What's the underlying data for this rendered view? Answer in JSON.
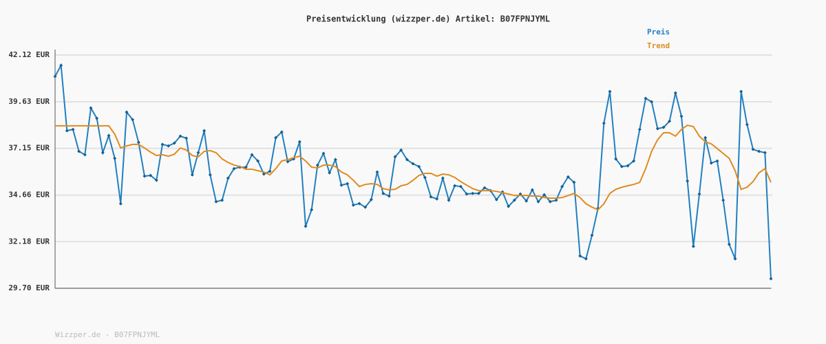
{
  "chart_data": {
    "type": "line",
    "title": "Preisentwicklung (wizzper.de) Artikel: B07FPNJYML",
    "footer": "Wizzper.de - B07FPNJYML",
    "ylim": [
      29.7,
      42.12
    ],
    "yticks": [
      {
        "value": 29.7,
        "label": "29.70 EUR"
      },
      {
        "value": 32.18,
        "label": "32.18 EUR"
      },
      {
        "value": 34.66,
        "label": "34.66 EUR"
      },
      {
        "value": 37.15,
        "label": "37.15 EUR"
      },
      {
        "value": 39.63,
        "label": "39.63 EUR"
      },
      {
        "value": 42.12,
        "label": "42.12 EUR"
      }
    ],
    "grid": true,
    "legend": "top-right",
    "series": [
      {
        "name": "Preis",
        "color": "#1f7fc0",
        "values": [
          40.98,
          41.57,
          38.09,
          38.16,
          36.99,
          36.81,
          39.3,
          38.75,
          36.92,
          37.83,
          36.62,
          34.2,
          39.08,
          38.68,
          37.47,
          35.67,
          35.71,
          35.45,
          37.36,
          37.28,
          37.43,
          37.8,
          37.69,
          35.74,
          36.92,
          38.09,
          35.74,
          34.31,
          34.39,
          35.56,
          36.07,
          36.15,
          36.15,
          36.81,
          36.48,
          35.78,
          35.93,
          37.72,
          38.02,
          36.44,
          36.59,
          37.5,
          33.0,
          33.88,
          36.26,
          36.88,
          35.85,
          36.55,
          35.19,
          35.27,
          34.13,
          34.21,
          34.02,
          34.42,
          35.89,
          34.75,
          34.61,
          36.7,
          37.06,
          36.55,
          36.33,
          36.18,
          35.6,
          34.57,
          34.46,
          35.56,
          34.39,
          35.16,
          35.12,
          34.72,
          34.75,
          34.75,
          35.05,
          34.9,
          34.42,
          34.83,
          34.06,
          34.39,
          34.72,
          34.35,
          34.94,
          34.31,
          34.68,
          34.31,
          34.39,
          35.12,
          35.63,
          35.34,
          31.42,
          31.27,
          32.52,
          33.95,
          38.49,
          40.18,
          36.59,
          36.18,
          36.22,
          36.48,
          38.16,
          39.81,
          39.63,
          38.2,
          38.27,
          38.6,
          40.1,
          38.86,
          35.41,
          31.93,
          34.72,
          37.72,
          36.37,
          36.48,
          34.39,
          32.04,
          31.27,
          40.18,
          38.42,
          37.1,
          36.99,
          36.92,
          30.21
        ]
      },
      {
        "name": "Trend",
        "color": "#e08a1e",
        "values": [
          38.35,
          38.35,
          38.35,
          38.35,
          38.35,
          38.35,
          38.35,
          38.35,
          38.35,
          38.35,
          37.91,
          37.17,
          37.28,
          37.36,
          37.36,
          37.17,
          36.95,
          36.77,
          36.81,
          36.73,
          36.84,
          37.17,
          37.06,
          36.77,
          36.7,
          36.99,
          37.03,
          36.92,
          36.59,
          36.4,
          36.26,
          36.18,
          36.04,
          36.04,
          35.96,
          35.89,
          35.74,
          36.07,
          36.48,
          36.55,
          36.66,
          36.73,
          36.48,
          36.15,
          36.11,
          36.26,
          36.26,
          36.18,
          35.89,
          35.74,
          35.45,
          35.12,
          35.23,
          35.27,
          35.23,
          35.01,
          34.94,
          34.97,
          35.16,
          35.23,
          35.45,
          35.71,
          35.82,
          35.82,
          35.67,
          35.78,
          35.74,
          35.6,
          35.38,
          35.19,
          35.01,
          34.9,
          34.9,
          34.9,
          34.86,
          34.79,
          34.72,
          34.64,
          34.64,
          34.64,
          34.61,
          34.61,
          34.53,
          34.5,
          34.5,
          34.53,
          34.64,
          34.75,
          34.53,
          34.2,
          34.02,
          33.88,
          34.2,
          34.75,
          34.97,
          35.08,
          35.16,
          35.23,
          35.34,
          36.07,
          36.99,
          37.61,
          37.98,
          37.98,
          37.8,
          38.16,
          38.38,
          38.31,
          37.8,
          37.5,
          37.39,
          37.14,
          36.88,
          36.62,
          35.96,
          34.97,
          35.08,
          35.38,
          35.85,
          36.07,
          35.34
        ]
      }
    ]
  }
}
